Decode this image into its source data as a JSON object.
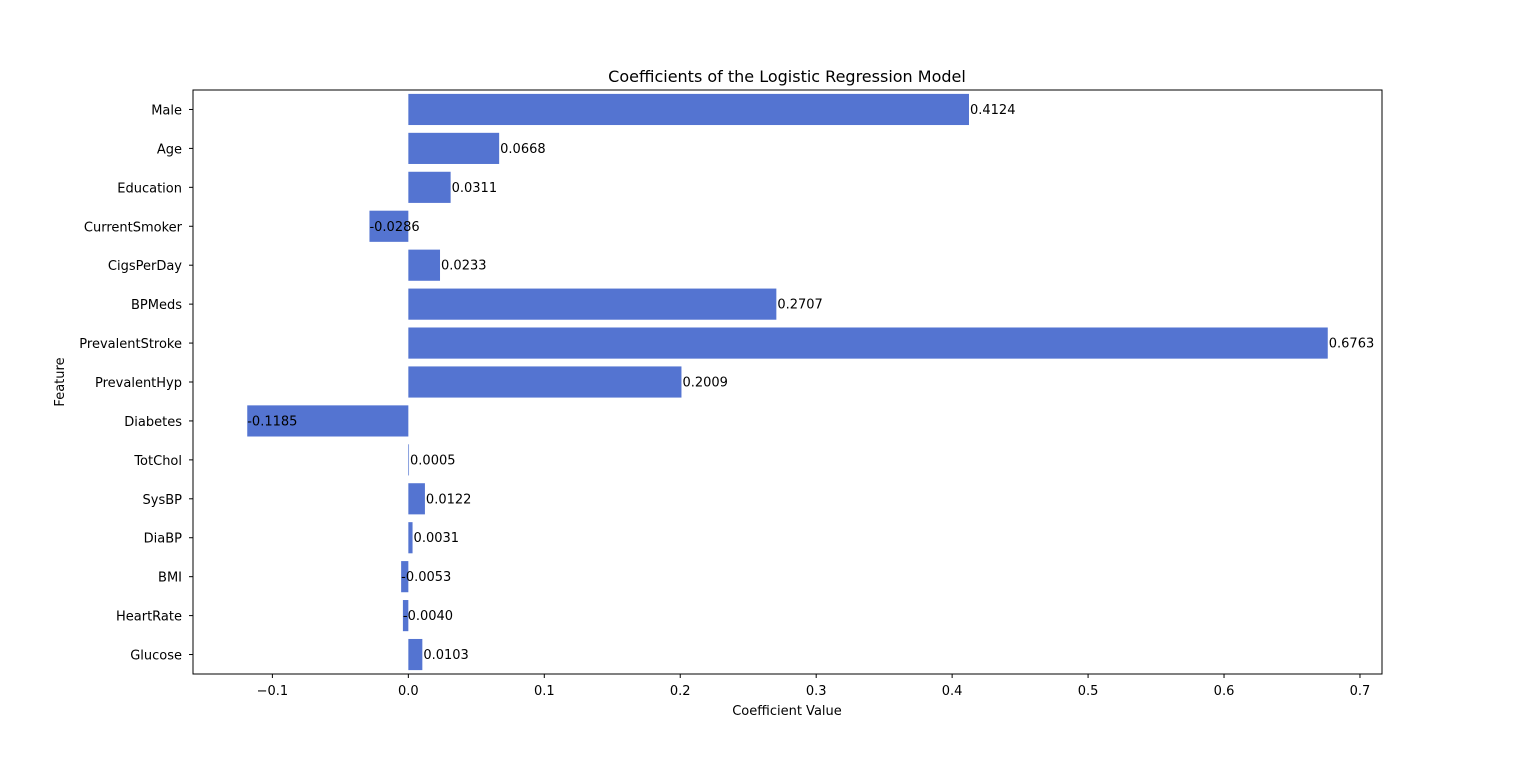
{
  "chart_data": {
    "type": "bar",
    "orientation": "horizontal",
    "title": "Coefficients of the Logistic Regression Model",
    "xlabel": "Coefficient Value",
    "ylabel": "Feature",
    "categories": [
      "Male",
      "Age",
      "Education",
      "CurrentSmoker",
      "CigsPerDay",
      "BPMeds",
      "PrevalentStroke",
      "PrevalentHyp",
      "Diabetes",
      "TotChol",
      "SysBP",
      "DiaBP",
      "BMI",
      "HeartRate",
      "Glucose"
    ],
    "values": [
      0.4124,
      0.0668,
      0.0311,
      -0.0286,
      0.0233,
      0.2707,
      0.6763,
      0.2009,
      -0.1185,
      0.0005,
      0.0122,
      0.0031,
      -0.0053,
      -0.004,
      0.0103
    ],
    "value_labels": [
      "0.4124",
      "0.0668",
      "0.0311",
      "-0.0286",
      "0.0233",
      "0.2707",
      "0.6763",
      "0.2009",
      "-0.1185",
      "0.0005",
      "0.0122",
      "0.0031",
      "-0.0053",
      "-0.0040",
      "0.0103"
    ],
    "xlim": [
      -0.1584,
      0.7162
    ],
    "xticks": [
      -0.1,
      0.0,
      0.1,
      0.2,
      0.3,
      0.4,
      0.5,
      0.6,
      0.7
    ],
    "xtick_labels": [
      "−0.1",
      "0.0",
      "0.1",
      "0.2",
      "0.3",
      "0.4",
      "0.5",
      "0.6",
      "0.7"
    ],
    "bar_color": "#5474d1",
    "grid": false,
    "legend": "none"
  }
}
